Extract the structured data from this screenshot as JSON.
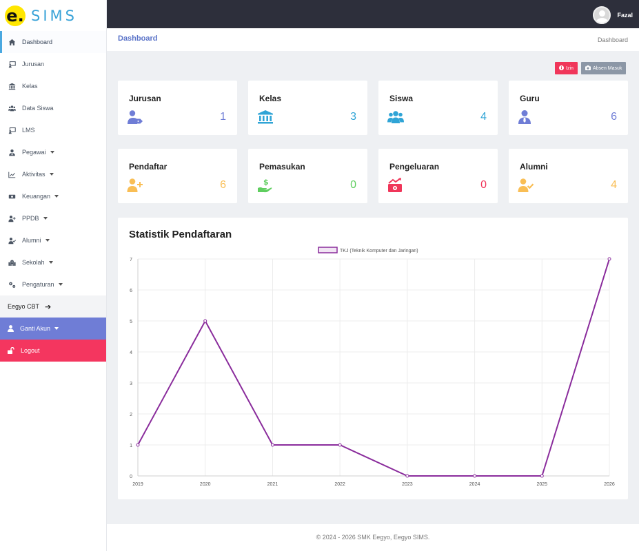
{
  "brand": {
    "logo_letter": "e.",
    "name": "SIMS"
  },
  "sidebar": {
    "items": [
      {
        "label": "Dashboard",
        "icon": "home-icon",
        "active": true
      },
      {
        "label": "Jurusan",
        "icon": "chalkboard-teacher-icon"
      },
      {
        "label": "Kelas",
        "icon": "university-icon"
      },
      {
        "label": "Data Siswa",
        "icon": "users-icon"
      },
      {
        "label": "LMS",
        "icon": "chalkboard-teacher-icon"
      },
      {
        "label": "Pegawai",
        "icon": "user-tie-icon",
        "dropdown": true
      },
      {
        "label": "Aktivitas",
        "icon": "chart-line-icon",
        "dropdown": true
      },
      {
        "label": "Keuangan",
        "icon": "money-bill-icon",
        "dropdown": true
      },
      {
        "label": "PPDB",
        "icon": "user-plus-icon",
        "dropdown": true
      },
      {
        "label": "Alumni",
        "icon": "user-check-icon",
        "dropdown": true
      },
      {
        "label": "Sekolah",
        "icon": "school-icon",
        "dropdown": true
      },
      {
        "label": "Pengaturan",
        "icon": "cogs-icon",
        "dropdown": true
      }
    ],
    "cbt_label": "Eegyo CBT",
    "ganti_akun_label": "Ganti Akun",
    "logout_label": "Logout"
  },
  "topbar": {
    "user_name": "Fazal"
  },
  "header": {
    "title": "Dashboard",
    "breadcrumb": "Dashboard"
  },
  "actions": {
    "izin_label": "Izin",
    "absen_label": "Absen Masuk"
  },
  "cards": [
    {
      "title": "Jurusan",
      "value": "1",
      "icon": "user-tag-icon",
      "color": "#6f7dd6"
    },
    {
      "title": "Kelas",
      "value": "3",
      "icon": "university-icon",
      "color": "#2fa4d6"
    },
    {
      "title": "Siswa",
      "value": "4",
      "icon": "users-icon",
      "color": "#2fa4d6"
    },
    {
      "title": "Guru",
      "value": "6",
      "icon": "user-tie-icon",
      "color": "#6f7dd6"
    },
    {
      "title": "Pendaftar",
      "value": "6",
      "icon": "user-plus-icon",
      "color": "#f9be55"
    },
    {
      "title": "Pemasukan",
      "value": "0",
      "icon": "hand-holding-usd-icon",
      "color": "#5fce5f"
    },
    {
      "title": "Pengeluaran",
      "value": "0",
      "icon": "money-chart-icon",
      "color": "#f0365a"
    },
    {
      "title": "Alumni",
      "value": "4",
      "icon": "user-check-icon",
      "color": "#f9be55"
    }
  ],
  "panel": {
    "title": "Statistik Pendaftaran"
  },
  "chart_data": {
    "type": "line",
    "categories": [
      "2019",
      "2020",
      "2021",
      "2022",
      "2023",
      "2024",
      "2025",
      "2026"
    ],
    "series": [
      {
        "name": "TKJ (Teknik Komputer dan Jaringan)",
        "values": [
          1,
          5,
          1,
          1,
          0,
          0,
          0,
          7
        ],
        "color": "#8a2c9c"
      }
    ],
    "ylim": [
      0,
      7
    ],
    "yticks": [
      "0",
      "1",
      "2",
      "3",
      "4",
      "5",
      "6",
      "7"
    ],
    "grid": true,
    "legend": "top"
  },
  "footer": {
    "text": "© 2024 - 2026 SMK Eegyo, Eegyo SIMS."
  }
}
